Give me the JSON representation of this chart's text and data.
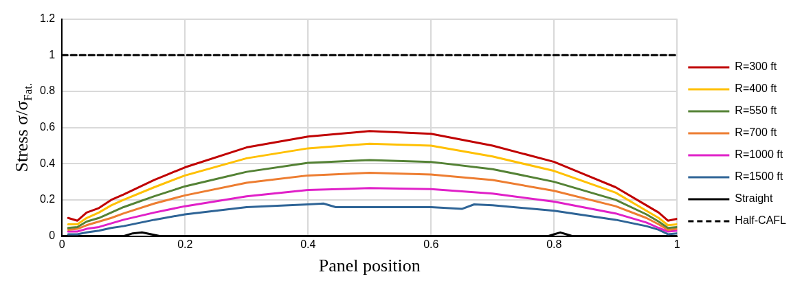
{
  "chart_data": {
    "type": "line",
    "xlabel": "Panel position",
    "ylabel": "Stress σ/σ$_{Fat.}$",
    "xlim": [
      0,
      1
    ],
    "ylim": [
      0,
      1.2
    ],
    "xticks": [
      0,
      0.2,
      0.4,
      0.6,
      0.8,
      1
    ],
    "yticks": [
      0,
      0.2,
      0.4,
      0.6,
      0.8,
      1,
      1.2
    ],
    "grid": true,
    "legend": "right",
    "marker": "none",
    "x": [
      0.01,
      0.025,
      0.04,
      0.06,
      0.08,
      0.1,
      0.15,
      0.2,
      0.3,
      0.4,
      0.5,
      0.6,
      0.7,
      0.8,
      0.9,
      0.95,
      0.97,
      0.985,
      1
    ],
    "series": [
      {
        "name": "R=300 ft",
        "color": "#c00000",
        "values": [
          0.1,
          0.085,
          0.13,
          0.155,
          0.2,
          0.23,
          0.31,
          0.38,
          0.49,
          0.55,
          0.58,
          0.565,
          0.5,
          0.41,
          0.27,
          0.17,
          0.13,
          0.085,
          0.095
        ]
      },
      {
        "name": "R=400 ft",
        "color": "#ffc000",
        "values": [
          0.065,
          0.065,
          0.1,
          0.13,
          0.17,
          0.2,
          0.27,
          0.335,
          0.43,
          0.485,
          0.51,
          0.5,
          0.44,
          0.36,
          0.24,
          0.14,
          0.1,
          0.06,
          0.065
        ]
      },
      {
        "name": "R=550 ft",
        "color": "#548235",
        "values": [
          0.045,
          0.05,
          0.08,
          0.1,
          0.13,
          0.16,
          0.22,
          0.275,
          0.355,
          0.405,
          0.42,
          0.41,
          0.37,
          0.3,
          0.2,
          0.12,
          0.08,
          0.045,
          0.05
        ]
      },
      {
        "name": "R=700 ft",
        "color": "#ed7d31",
        "values": [
          0.035,
          0.04,
          0.06,
          0.08,
          0.1,
          0.125,
          0.18,
          0.225,
          0.295,
          0.335,
          0.35,
          0.34,
          0.31,
          0.25,
          0.165,
          0.1,
          0.065,
          0.035,
          0.04
        ]
      },
      {
        "name": "R=1000 ft",
        "color": "#e020c8",
        "values": [
          0.025,
          0.025,
          0.04,
          0.05,
          0.07,
          0.09,
          0.13,
          0.165,
          0.22,
          0.255,
          0.265,
          0.26,
          0.235,
          0.19,
          0.125,
          0.075,
          0.045,
          0.025,
          0.03
        ]
      },
      {
        "name": "R=1500 ft",
        "color": "#2e6496",
        "x": [
          0.01,
          0.025,
          0.04,
          0.06,
          0.08,
          0.1,
          0.15,
          0.2,
          0.3,
          0.4,
          0.425,
          0.445,
          0.5,
          0.6,
          0.65,
          0.67,
          0.7,
          0.8,
          0.9,
          0.95,
          0.97,
          0.985,
          1
        ],
        "values": [
          0.01,
          0.01,
          0.02,
          0.03,
          0.045,
          0.055,
          0.09,
          0.12,
          0.16,
          0.175,
          0.18,
          0.16,
          0.16,
          0.16,
          0.15,
          0.175,
          0.17,
          0.14,
          0.09,
          0.055,
          0.035,
          0.01,
          0.015
        ]
      },
      {
        "name": "Straight",
        "color": "#000000",
        "x": [
          0,
          0.1,
          0.115,
          0.13,
          0.145,
          0.16,
          0.79,
          0.8,
          0.81,
          0.82,
          0.83,
          1
        ],
        "values": [
          0,
          0,
          0.015,
          0.02,
          0.01,
          0,
          0,
          0.01,
          0.02,
          0.01,
          0,
          0
        ]
      },
      {
        "name": "Half-CAFL",
        "color": "#000000",
        "line_style": "dashed",
        "x": [
          0,
          1
        ],
        "values": [
          1,
          1
        ]
      }
    ]
  }
}
